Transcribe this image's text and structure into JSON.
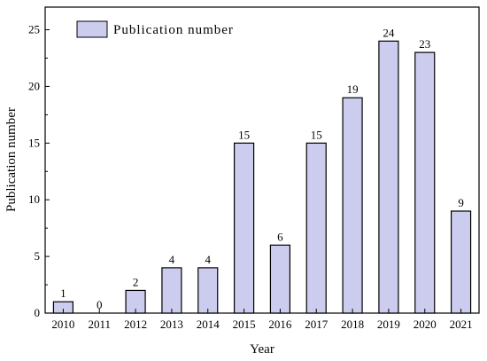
{
  "chart_data": {
    "type": "bar",
    "xlabel": "Year",
    "ylabel": "Publication number",
    "categories": [
      "2010",
      "2011",
      "2012",
      "2013",
      "2014",
      "2015",
      "2016",
      "2017",
      "2018",
      "2019",
      "2020",
      "2021"
    ],
    "series": [
      {
        "name": "Publication number",
        "values": [
          1,
          0,
          2,
          4,
          4,
          15,
          6,
          15,
          19,
          24,
          23,
          9
        ],
        "labels": [
          "1",
          "0",
          "2",
          "4",
          "4",
          "15",
          "6",
          "15",
          "19",
          "24",
          "23",
          "9"
        ]
      }
    ],
    "ylim": [
      0,
      27
    ],
    "yticks": [
      0,
      5,
      10,
      15,
      20,
      25
    ],
    "legend": "top-left",
    "grid": false,
    "colors": {
      "bar_fill": "#ccccee",
      "bar_stroke": "#000000"
    }
  }
}
